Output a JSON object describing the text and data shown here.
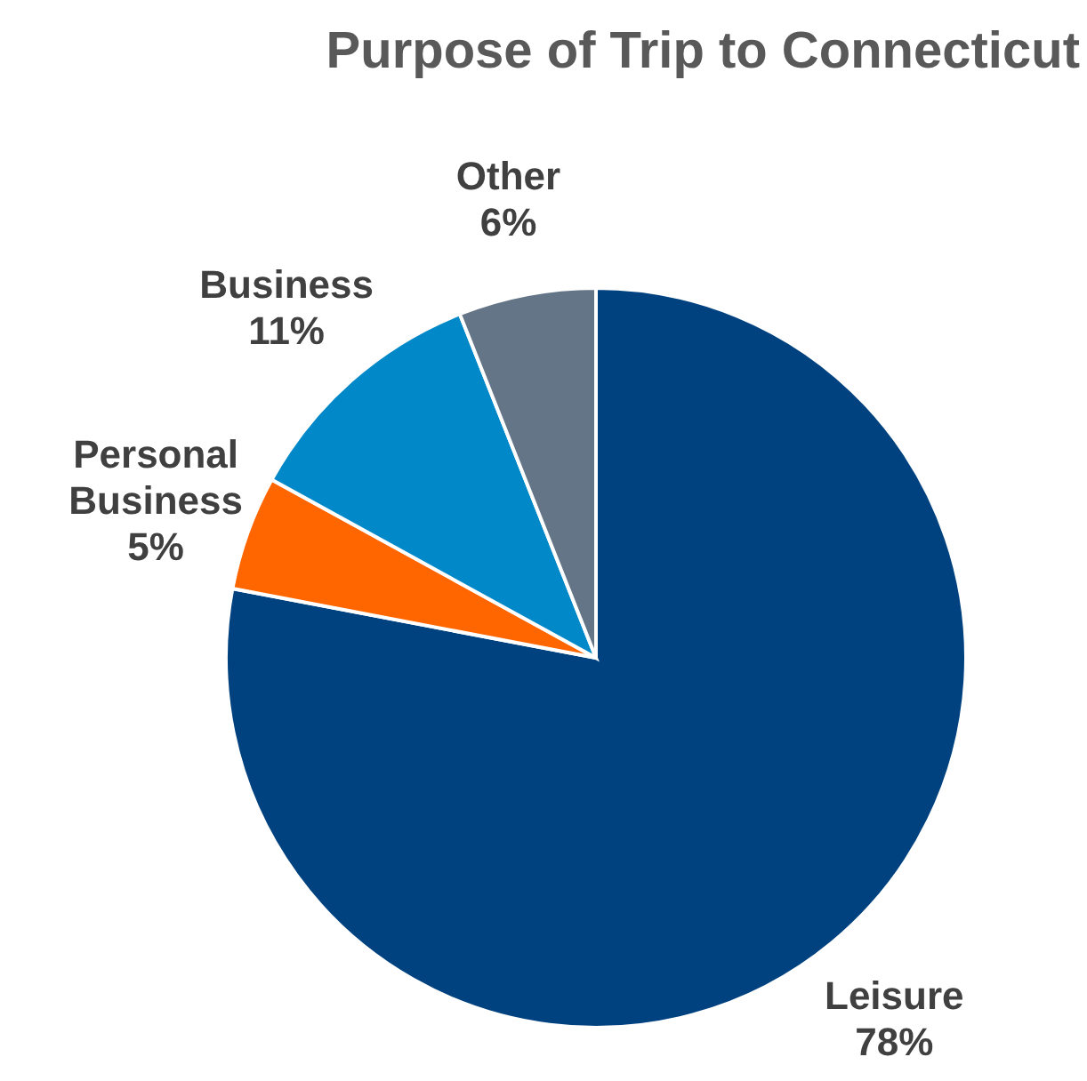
{
  "chart_data": {
    "type": "pie",
    "title": "Purpose of Trip to Connecticut",
    "categories": [
      "Leisure",
      "Personal Business",
      "Business",
      "Other"
    ],
    "values": [
      78,
      5,
      11,
      6
    ],
    "value_labels": [
      "78%",
      "5%",
      "11%",
      "6%"
    ],
    "colors": [
      "#00427f",
      "#ff6600",
      "#0088c8",
      "#647587"
    ]
  }
}
